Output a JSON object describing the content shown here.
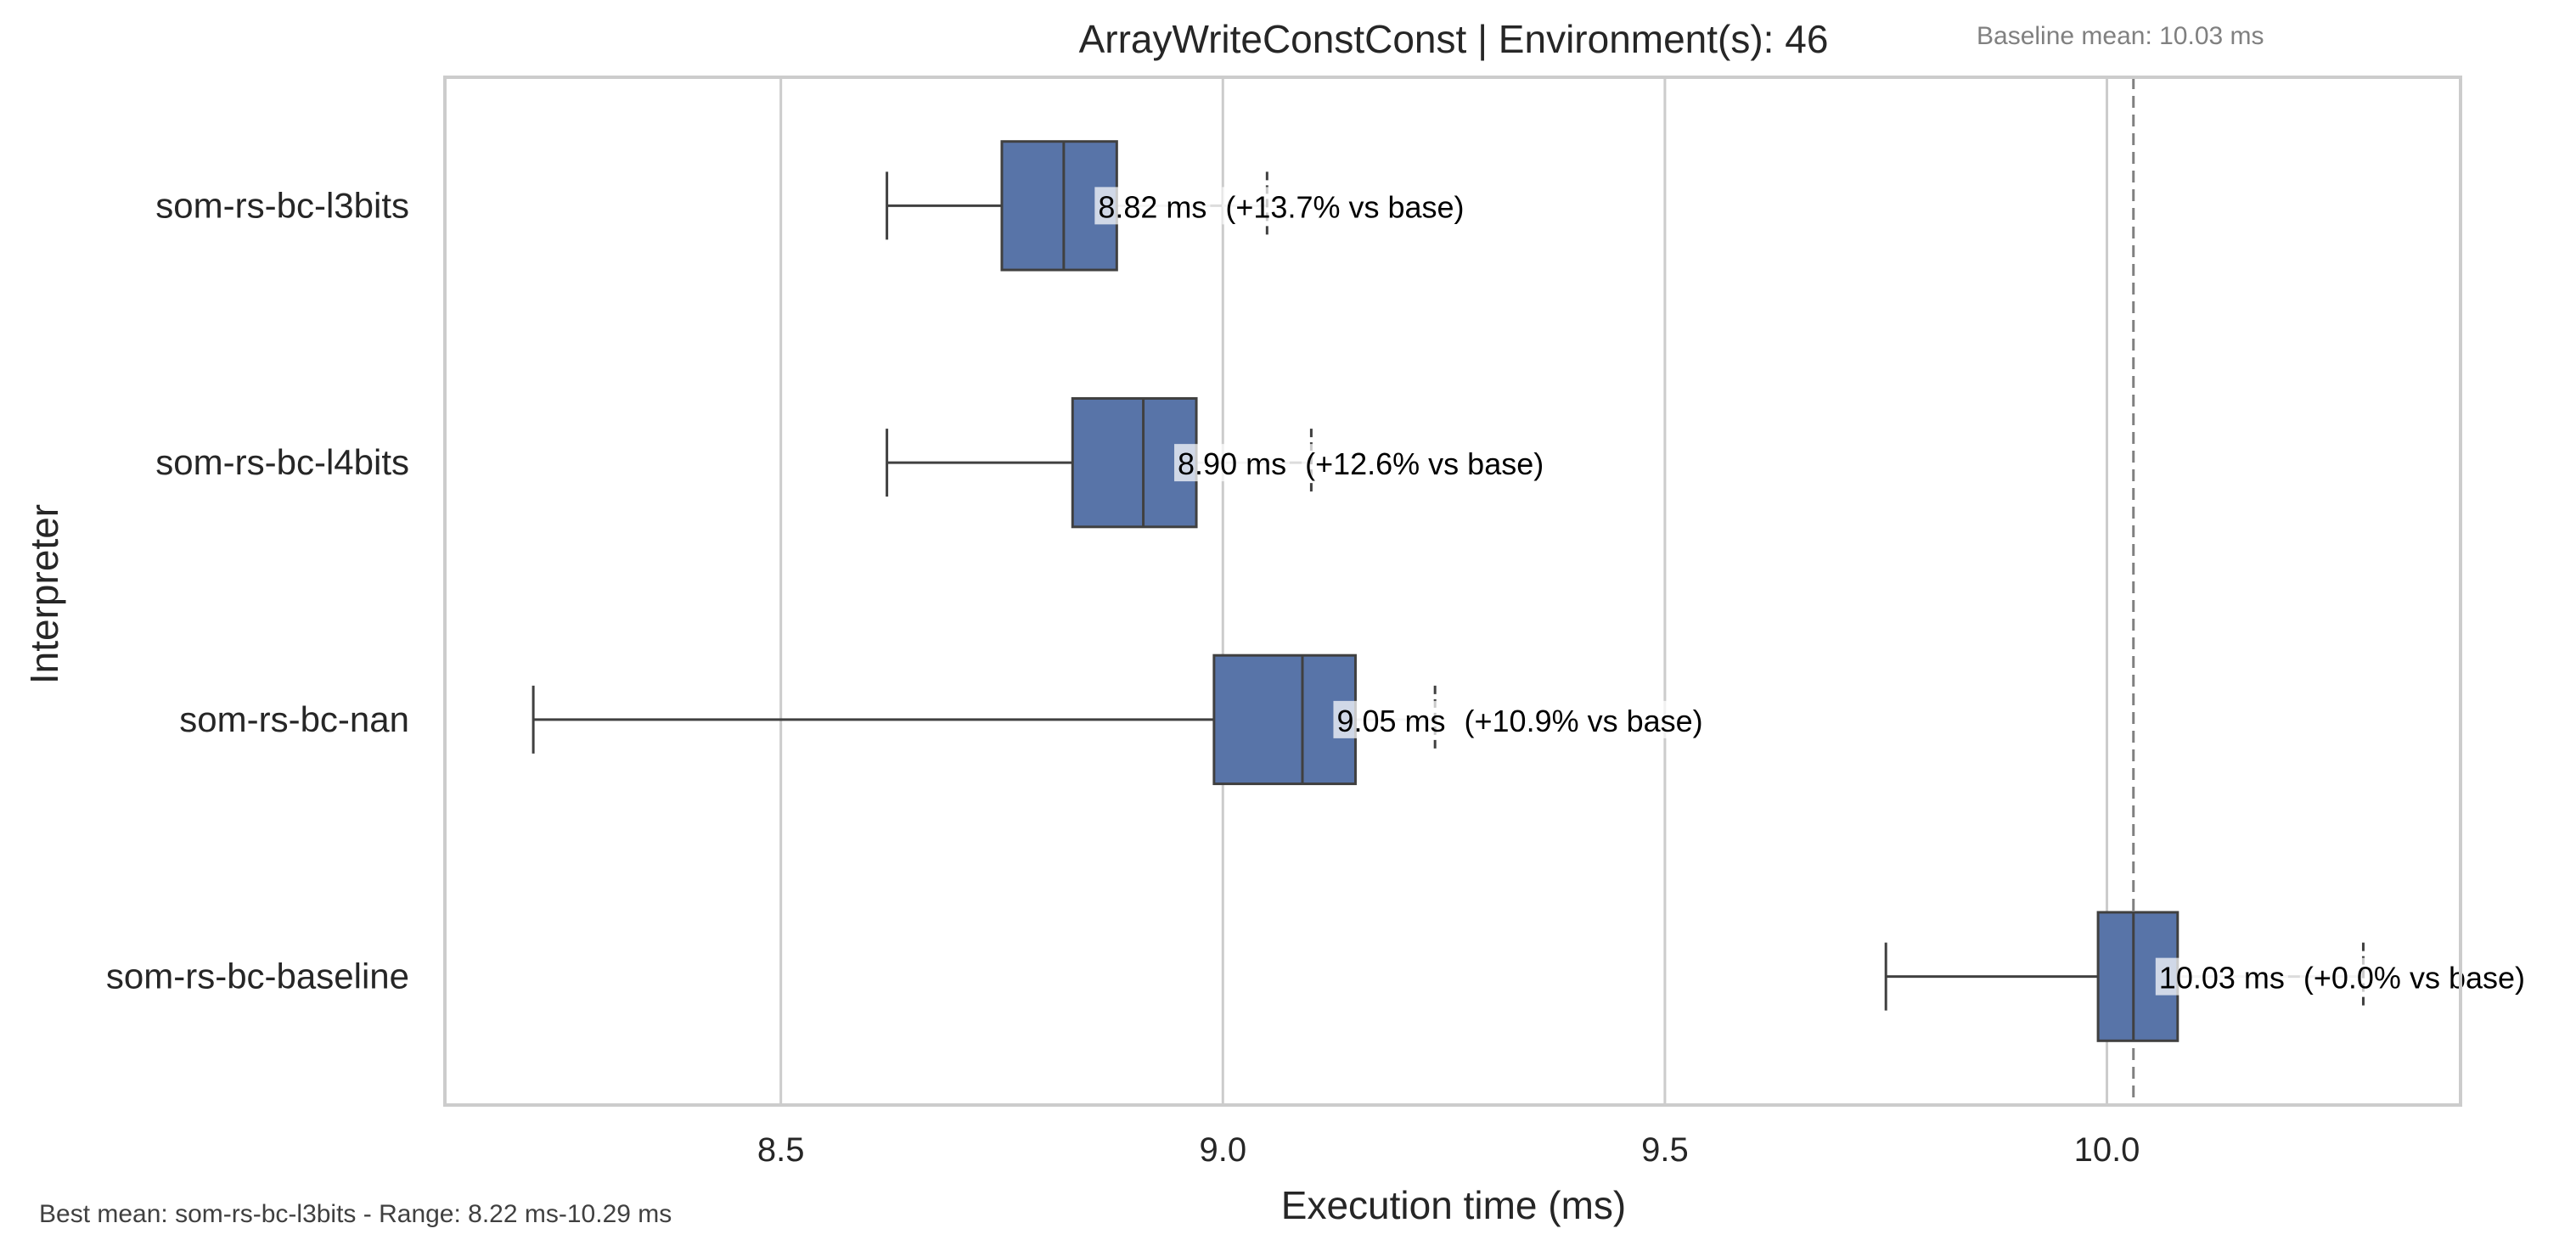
{
  "chart_data": {
    "type": "boxplot",
    "orientation": "horizontal",
    "title": "ArrayWriteConstConst | Environment(s): 46",
    "xlabel": "Execution time (ms)",
    "ylabel": "Interpreter",
    "xlim": [
      8.12,
      10.4
    ],
    "xticks": [
      8.5,
      9.0,
      9.5,
      10.0
    ],
    "xtick_labels": [
      "8.5",
      "9.0",
      "9.5",
      "10.0"
    ],
    "grid": "vertical",
    "baseline_mean": 10.03,
    "baseline_label": "Baseline mean: 10.03 ms",
    "footer": "Best mean: som-rs-bc-l3bits - Range: 8.22 ms-10.29 ms",
    "box_color": "#5874a8",
    "series": [
      {
        "name": "som-rs-bc-l3bits",
        "whisker_low": 8.62,
        "q1": 8.75,
        "median": 8.82,
        "q3": 8.88,
        "whisker_high": 9.05,
        "mean_label": "8.82 ms",
        "delta_label": "(+13.7% vs base)"
      },
      {
        "name": "som-rs-bc-l4bits",
        "whisker_low": 8.62,
        "q1": 8.83,
        "median": 8.91,
        "q3": 8.97,
        "whisker_high": 9.1,
        "mean_label": "8.90 ms",
        "delta_label": "(+12.6% vs base)"
      },
      {
        "name": "som-rs-bc-nan",
        "whisker_low": 8.22,
        "q1": 8.99,
        "median": 9.09,
        "q3": 9.15,
        "whisker_high": 9.24,
        "mean_label": "9.05 ms",
        "delta_label": "(+10.9% vs base)"
      },
      {
        "name": "som-rs-bc-baseline",
        "whisker_low": 9.75,
        "q1": 9.99,
        "median": 10.03,
        "q3": 10.08,
        "whisker_high": 10.29,
        "mean_label": "10.03 ms",
        "delta_label": "(+0.0% vs base)"
      }
    ]
  }
}
